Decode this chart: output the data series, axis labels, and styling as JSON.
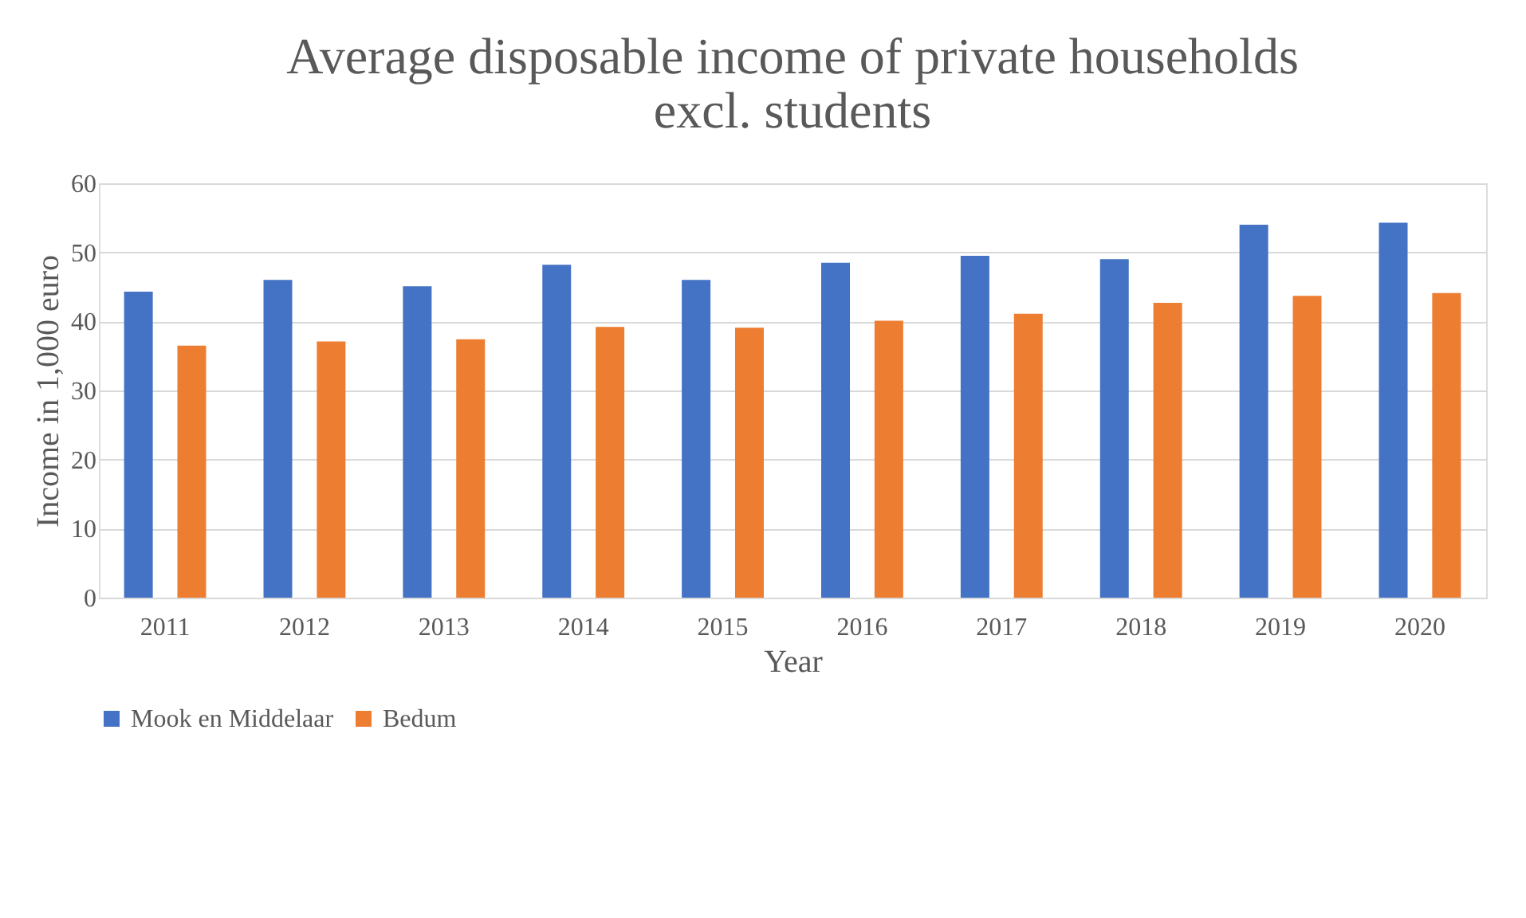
{
  "chart_data": {
    "type": "bar",
    "title": [
      "Average disposable income of private households",
      "excl. students"
    ],
    "xlabel": "Year",
    "ylabel": "Income in 1,000 euro",
    "categories": [
      "2011",
      "2012",
      "2013",
      "2014",
      "2015",
      "2016",
      "2017",
      "2018",
      "2019",
      "2020"
    ],
    "series": [
      {
        "name": "Mook en Middelaar",
        "color": "#4472c4",
        "values": [
          44.3,
          46.0,
          45.1,
          48.2,
          46.0,
          48.5,
          49.5,
          49.0,
          54.0,
          54.3
        ]
      },
      {
        "name": "Bedum",
        "color": "#ed7d31",
        "values": [
          36.5,
          37.1,
          37.4,
          39.2,
          39.1,
          40.1,
          41.1,
          42.7,
          43.7,
          44.1
        ]
      }
    ],
    "ylim": [
      0,
      60
    ],
    "yticks": [
      0,
      10,
      20,
      30,
      40,
      50,
      60
    ],
    "grid": "y",
    "legend": "bottom"
  }
}
